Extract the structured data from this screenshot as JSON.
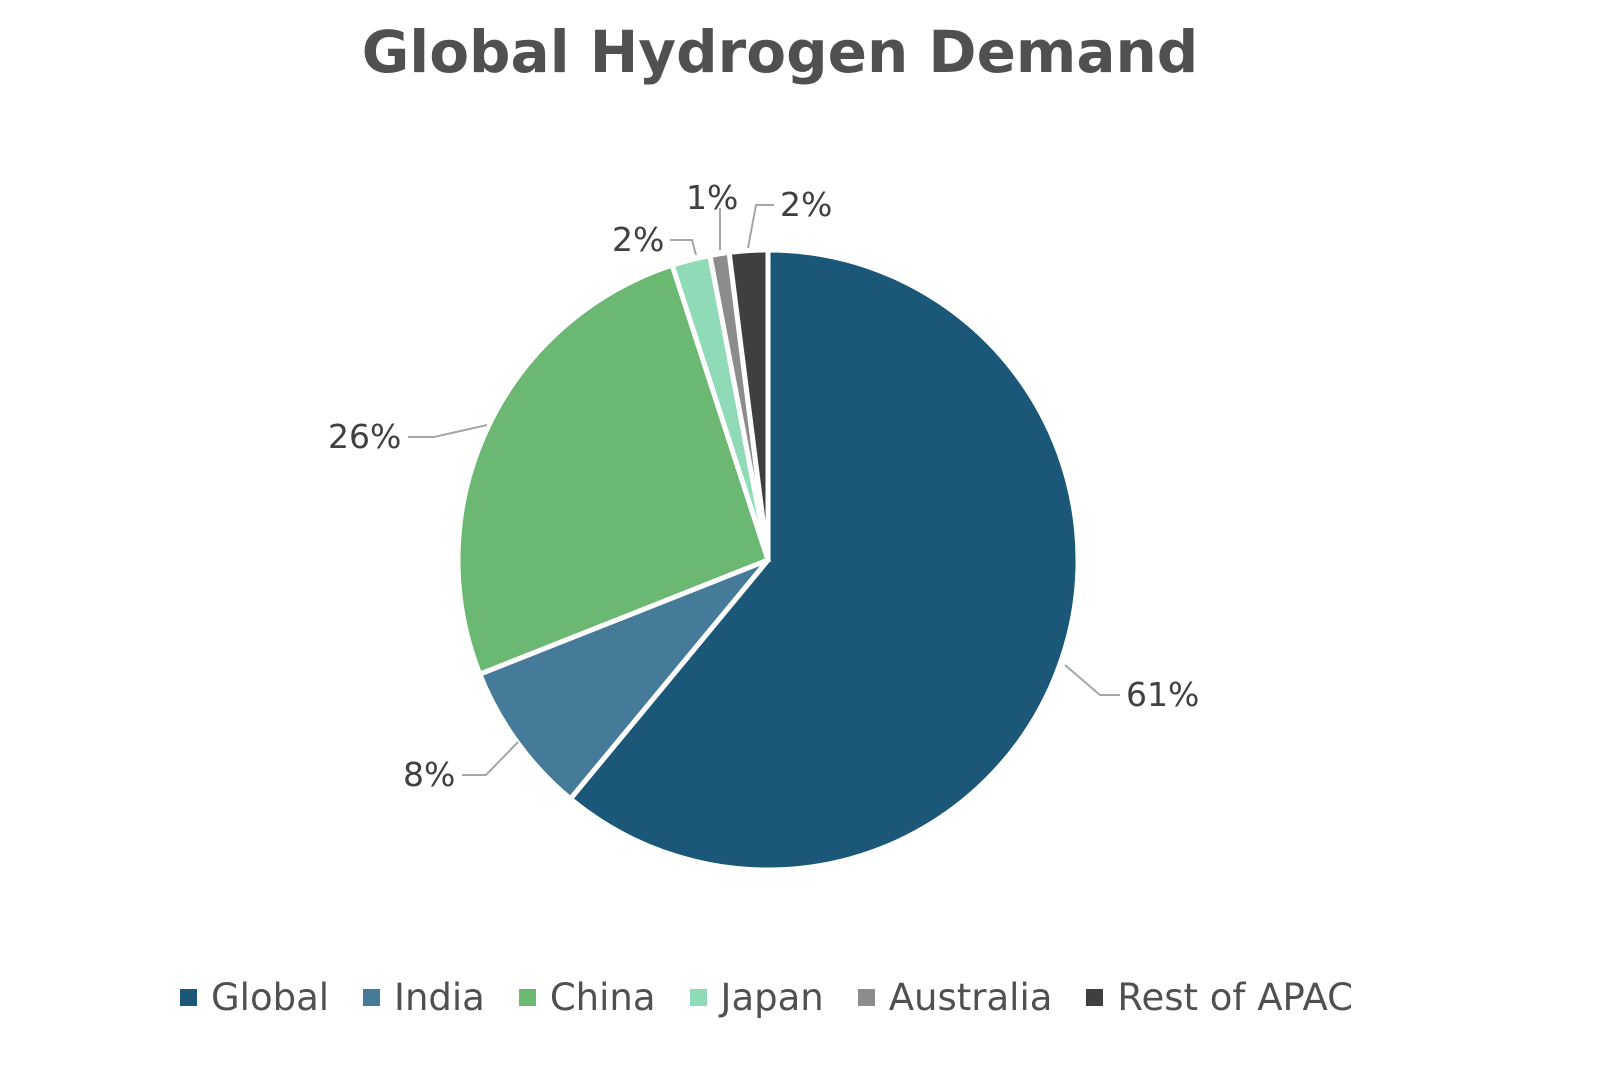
{
  "chart_data": {
    "type": "pie",
    "title": "Global Hydrogen Demand",
    "categories": [
      "Global",
      "India",
      "China",
      "Japan",
      "Australia",
      "Rest of APAC"
    ],
    "values": [
      61,
      8,
      26,
      2,
      1,
      2
    ],
    "data_labels": [
      "61%",
      "8%",
      "26%",
      "2%",
      "1%",
      "2%"
    ],
    "colors": [
      "#1b5878",
      "#457b99",
      "#6bb872",
      "#90dbb7",
      "#8c8c8c",
      "#3f3f3f"
    ],
    "legend_position": "bottom",
    "start_angle": "12 o'clock, clockwise"
  }
}
